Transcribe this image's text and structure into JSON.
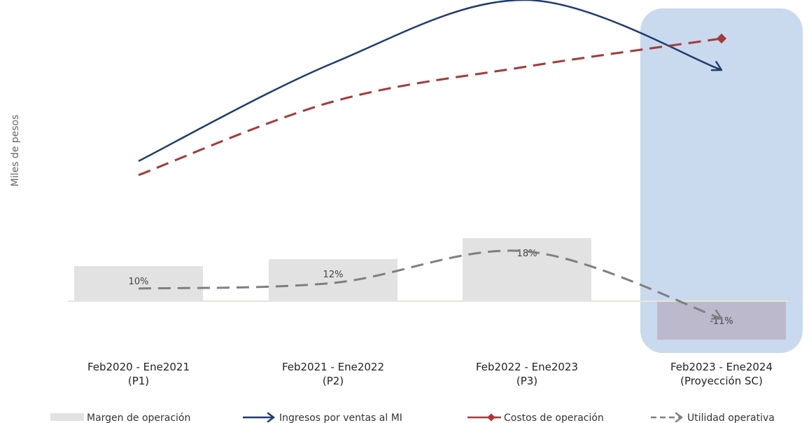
{
  "chart_data": {
    "type": "bar",
    "ylabel": "Miles de pesos",
    "categories": [
      [
        "Feb2020 - Ene2021",
        "(P1)"
      ],
      [
        "Feb2021 - Ene2022",
        "(P2)"
      ],
      [
        "Feb2022 - Ene2023",
        "(P3)"
      ],
      [
        "Feb2023 - Ene2024",
        "(Proyección SC)"
      ]
    ],
    "highlight_category_index": 3,
    "highlight_color": "#c9d9ee",
    "series": [
      {
        "name": "Margen de operación",
        "kind": "bar",
        "color": "#e2e2e2",
        "values": [
          10,
          12,
          18,
          -11
        ],
        "labels": [
          "10%",
          "12%",
          "18%",
          "-11%"
        ]
      },
      {
        "name": "Ingresos por ventas al MI",
        "kind": "line",
        "color": "#1f3b6e",
        "values": [
          40,
          68,
          86,
          66
        ]
      },
      {
        "name": "Costos de operación",
        "kind": "line-dashed",
        "color": "#a53a3a",
        "values": [
          36,
          57,
          67,
          75
        ]
      },
      {
        "name": "Utilidad operativa",
        "kind": "line-dashed",
        "color": "#7f7f7f",
        "values": [
          3.6,
          5.2,
          14.2,
          -5
        ]
      }
    ]
  }
}
